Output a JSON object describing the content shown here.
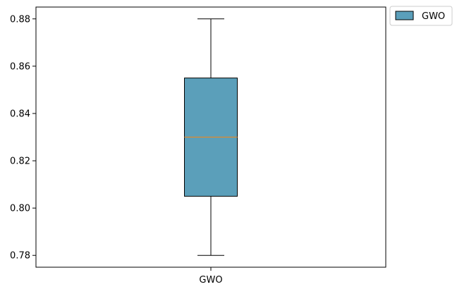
{
  "chart_data": {
    "type": "box",
    "title": "",
    "xlabel": "",
    "ylabel": "",
    "categories": [
      "GWO"
    ],
    "series": [
      {
        "name": "GWO",
        "min": 0.78,
        "q1": 0.805,
        "median": 0.83,
        "q3": 0.855,
        "max": 0.88
      }
    ],
    "ylim": [
      0.775,
      0.885
    ],
    "yticks": [
      "0.78",
      "0.80",
      "0.82",
      "0.84",
      "0.86",
      "0.88"
    ],
    "grid": false,
    "legend": {
      "position": "outside-top-right",
      "entries": [
        "GWO"
      ]
    },
    "colors": {
      "box_fill": "#5b9fba",
      "box_edge": "#000000",
      "median": "#e08a2c",
      "whisker": "#000000"
    }
  }
}
